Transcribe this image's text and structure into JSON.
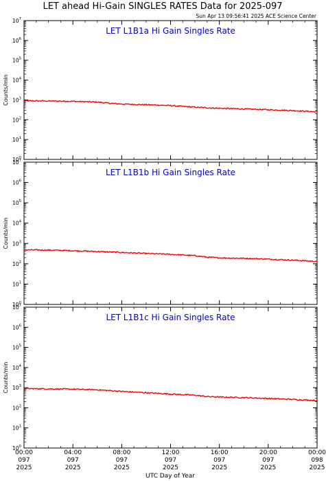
{
  "header": {
    "title": "LET ahead Hi-Gain SINGLES RATES Data for 2025-097",
    "timestamp": "Sun Apr 13 09:56:41 2025 ACE Science Center"
  },
  "colors": {
    "series": "#ff0000",
    "panel_title": "#0000cc",
    "axis": "#000000",
    "background": "#ffffff"
  },
  "chart_data": [
    {
      "type": "line",
      "title": "LET L1B1a Hi Gain Singles Rate",
      "ylabel": "Counts/min",
      "yscale": "log",
      "ylim": [
        1,
        10000000
      ],
      "yticks": [
        {
          "exp": "0",
          "value": 1
        },
        {
          "exp": "1",
          "value": 10
        },
        {
          "exp": "2",
          "value": 100
        },
        {
          "exp": "3",
          "value": 1000
        },
        {
          "exp": "4",
          "value": 10000
        },
        {
          "exp": "5",
          "value": 100000
        },
        {
          "exp": "6",
          "value": 1000000
        },
        {
          "exp": "7",
          "value": 10000000
        }
      ],
      "xlim": [
        0,
        24
      ],
      "series": [
        {
          "x": [
            0,
            2,
            4,
            6,
            7,
            8,
            10,
            12,
            13,
            14,
            15,
            16,
            18,
            20,
            22,
            23,
            24
          ],
          "y": [
            900,
            880,
            850,
            780,
            680,
            620,
            570,
            520,
            470,
            430,
            400,
            380,
            350,
            320,
            290,
            270,
            250
          ]
        }
      ]
    },
    {
      "type": "line",
      "title": "LET L1B1b Hi Gain Singles Rate",
      "ylabel": "Counts/min",
      "yscale": "log",
      "ylim": [
        1,
        10000000
      ],
      "yticks": [
        {
          "exp": "0",
          "value": 1
        },
        {
          "exp": "1",
          "value": 10
        },
        {
          "exp": "2",
          "value": 100
        },
        {
          "exp": "3",
          "value": 1000
        },
        {
          "exp": "4",
          "value": 10000
        },
        {
          "exp": "5",
          "value": 100000
        },
        {
          "exp": "6",
          "value": 1000000
        },
        {
          "exp": "7",
          "value": 10000000
        }
      ],
      "xlim": [
        0,
        24
      ],
      "series": [
        {
          "x": [
            0,
            2,
            4,
            6,
            8,
            10,
            12,
            14,
            15,
            16,
            18,
            20,
            22,
            24
          ],
          "y": [
            480,
            470,
            440,
            400,
            360,
            320,
            290,
            250,
            210,
            195,
            185,
            170,
            150,
            130
          ]
        }
      ]
    },
    {
      "type": "line",
      "title": "LET L1B1c Hi Gain Singles Rate",
      "ylabel": "Counts/min",
      "yscale": "log",
      "ylim": [
        1,
        10000000
      ],
      "yticks": [
        {
          "exp": "0",
          "value": 1
        },
        {
          "exp": "1",
          "value": 10
        },
        {
          "exp": "2",
          "value": 100
        },
        {
          "exp": "3",
          "value": 1000
        },
        {
          "exp": "4",
          "value": 10000
        },
        {
          "exp": "5",
          "value": 100000
        },
        {
          "exp": "6",
          "value": 1000000
        },
        {
          "exp": "7",
          "value": 10000000
        }
      ],
      "xlim": [
        0,
        24
      ],
      "series": [
        {
          "x": [
            0,
            2,
            4,
            6,
            8,
            10,
            12,
            14,
            15,
            16,
            18,
            20,
            22,
            24
          ],
          "y": [
            900,
            870,
            840,
            780,
            650,
            560,
            480,
            420,
            360,
            340,
            320,
            290,
            260,
            230
          ]
        }
      ]
    }
  ],
  "x_axis": {
    "label": "UTC Day of Year",
    "ticks": [
      {
        "value": 0,
        "time": "00:00",
        "day": "097",
        "year": "2025"
      },
      {
        "value": 4,
        "time": "04:00",
        "day": "097",
        "year": "2025"
      },
      {
        "value": 8,
        "time": "08:00",
        "day": "097",
        "year": "2025"
      },
      {
        "value": 12,
        "time": "12:00",
        "day": "097",
        "year": "2025"
      },
      {
        "value": 16,
        "time": "16:00",
        "day": "097",
        "year": "2025"
      },
      {
        "value": 20,
        "time": "20:00",
        "day": "097",
        "year": "2025"
      },
      {
        "value": 24,
        "time": "00:00",
        "day": "098",
        "year": "2025"
      }
    ]
  }
}
